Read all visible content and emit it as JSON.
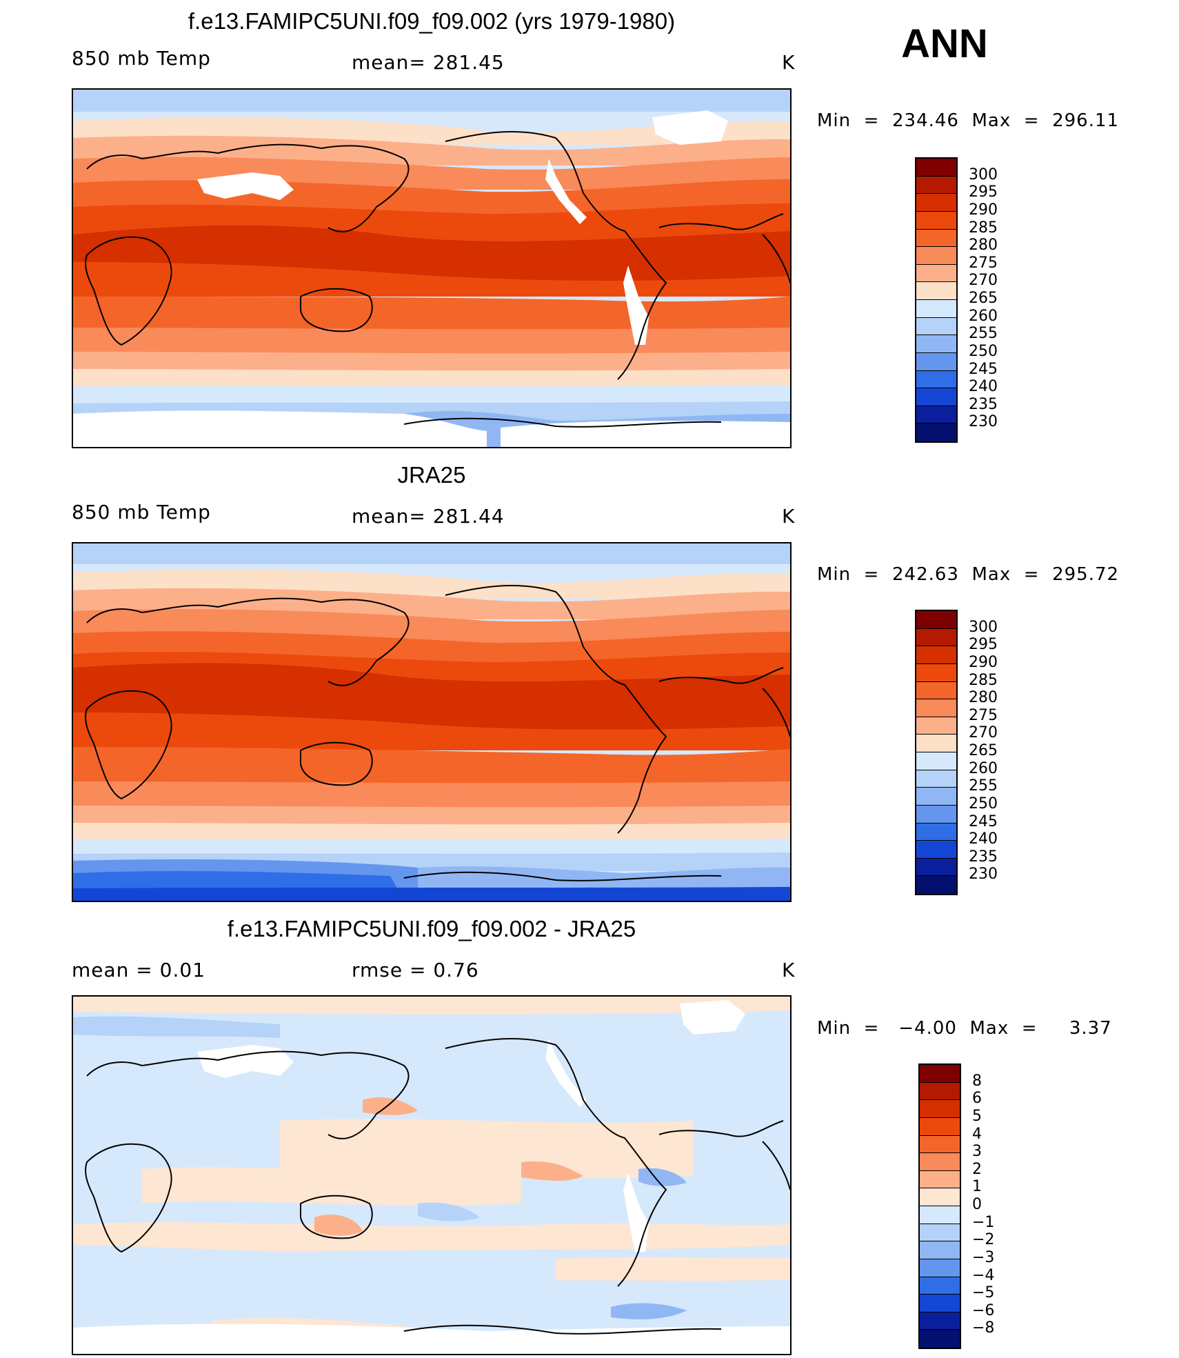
{
  "season": "ANN",
  "panels": [
    {
      "id": "model",
      "title": "f.e13.FAMIPC5UNI.f09_f09.002 (yrs 1979-1980)",
      "left_label": "850 mb Temp",
      "center_label": "mean= 281.45",
      "right_label": "K",
      "minmax": "Min  =  234.46  Max  =  296.11",
      "colorbar": [
        "300",
        "295",
        "290",
        "285",
        "280",
        "275",
        "270",
        "265",
        "260",
        "255",
        "250",
        "245",
        "240",
        "235",
        "230"
      ]
    },
    {
      "id": "obs",
      "title": "JRA25",
      "left_label": "850 mb Temp",
      "center_label": "mean= 281.44",
      "right_label": "K",
      "minmax": "Min  =  242.63  Max  =  295.72",
      "colorbar": [
        "300",
        "295",
        "290",
        "285",
        "280",
        "275",
        "270",
        "265",
        "260",
        "255",
        "250",
        "245",
        "240",
        "235",
        "230"
      ]
    },
    {
      "id": "diff",
      "title": "f.e13.FAMIPC5UNI.f09_f09.002 - JRA25",
      "left_label": "mean =     0.01",
      "center_label": "rmse =     0.76",
      "right_label": "K",
      "minmax": "Min  =   −4.00  Max  =     3.37",
      "colorbar": [
        "8",
        "6",
        "5",
        "4",
        "3",
        "2",
        "1",
        "0",
        "−1",
        "−2",
        "−3",
        "−4",
        "−5",
        "−6",
        "−8"
      ]
    }
  ],
  "colors": {
    "temp_scale": [
      "#7f0000",
      "#b31a00",
      "#d62f00",
      "#ec4a0c",
      "#f4652a",
      "#f98a5a",
      "#fcb08a",
      "#fde0c8",
      "#d6e8fb",
      "#b5d2f8",
      "#90b7f4",
      "#6496ee",
      "#2f6ee6",
      "#1446d6",
      "#0a1f9e",
      "#03106e"
    ],
    "diff_scale": [
      "#7f0000",
      "#b31a00",
      "#d62f00",
      "#ec4a0c",
      "#f4652a",
      "#f98a5a",
      "#fcb08a",
      "#fde6d2",
      "#d6e8fb",
      "#b5d2f8",
      "#90b7f4",
      "#6496ee",
      "#2f6ee6",
      "#1446d6",
      "#0a1f9e",
      "#03106e"
    ]
  }
}
